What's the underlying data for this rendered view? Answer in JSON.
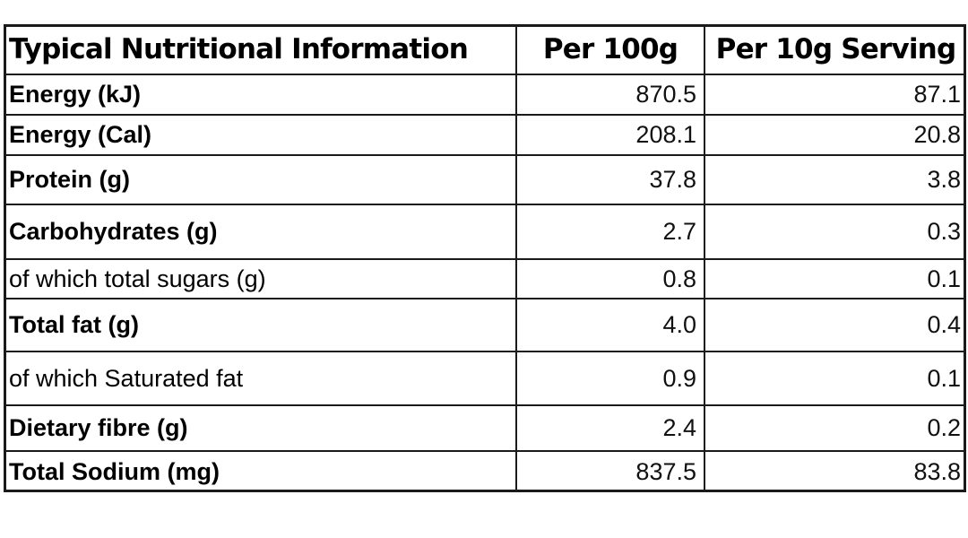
{
  "table": {
    "headers": [
      "Typical Nutritional Information",
      "Per 100g",
      "Per 10g Serving"
    ],
    "rows": [
      {
        "label": "Energy (kJ)",
        "per100": "870.5",
        "perServing": "87.1",
        "bold": true
      },
      {
        "label": "Energy (Cal)",
        "per100": "208.1",
        "perServing": "20.8",
        "bold": true
      },
      {
        "label": "Protein (g)",
        "per100": "37.8",
        "perServing": "3.8",
        "bold": true
      },
      {
        "label": "Carbohydrates (g)",
        "per100": "2.7",
        "perServing": "0.3",
        "bold": true
      },
      {
        "label": "of which total sugars (g)",
        "per100": "0.8",
        "perServing": "0.1",
        "bold": false
      },
      {
        "label": "Total fat (g)",
        "per100": "4.0",
        "perServing": "0.4",
        "bold": true
      },
      {
        "label": "of which Saturated fat",
        "per100": "0.9",
        "perServing": "0.1",
        "bold": false
      },
      {
        "label": "Dietary fibre (g)",
        "per100": "2.4",
        "perServing": "0.2",
        "bold": true
      },
      {
        "label": "Total Sodium (mg)",
        "per100": "837.5",
        "perServing": "83.8",
        "bold": true
      }
    ]
  }
}
